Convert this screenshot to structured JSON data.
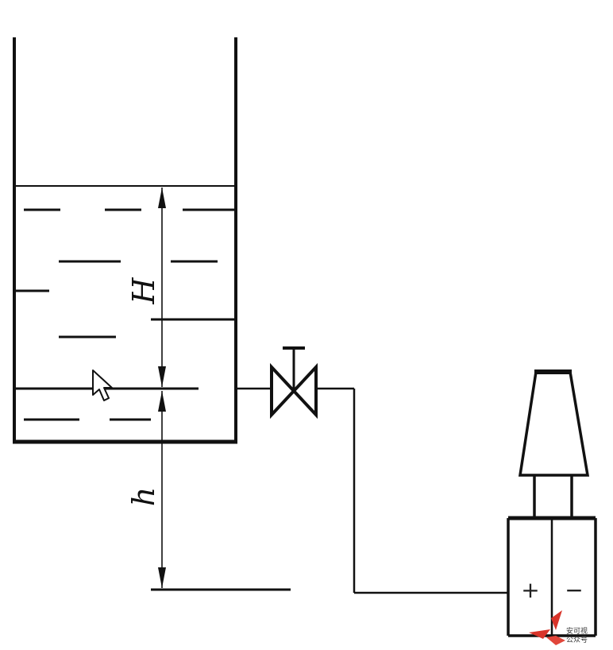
{
  "labels": {
    "H": "H",
    "h": "h"
  },
  "gauge": {
    "plus": "+",
    "minus": "−"
  },
  "watermark": {
    "line1": "安可视",
    "line2": "公众号"
  },
  "icons": {
    "cursor": "mouse-pointer-icon",
    "valve": "valve-icon",
    "logo": "watermark-logo-icon"
  }
}
